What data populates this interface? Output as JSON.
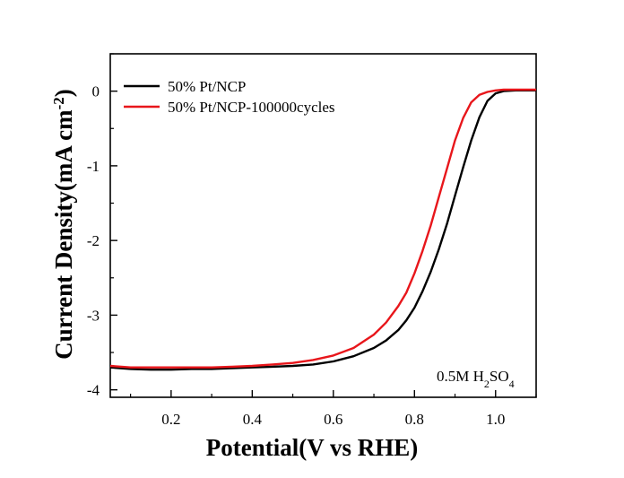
{
  "chart_data": {
    "type": "line",
    "title": "",
    "xlabel": "Potential(V vs RHE)",
    "ylabel_main": "Current Density(mA cm",
    "ylabel_sup": "-2",
    "ylabel_close": ")",
    "xlim": [
      0.05,
      1.1
    ],
    "ylim": [
      -4.1,
      0.5
    ],
    "xticks": [
      0.2,
      0.4,
      0.6,
      0.8,
      1.0
    ],
    "xtick_labels": [
      "0.2",
      "0.4",
      "0.6",
      "0.8",
      "1.0"
    ],
    "yticks": [
      0,
      -1,
      -2,
      -3,
      -4
    ],
    "ytick_labels": [
      "0",
      "-1",
      "-2",
      "-3",
      "-4"
    ],
    "legend_position": "top-left",
    "annotation": {
      "prefix": "0.5M H",
      "sub1": "2",
      "mid": "SO",
      "sub2": "4",
      "position": "bottom-right"
    },
    "series": [
      {
        "name": "50% Pt/NCP",
        "color": "#000000",
        "x": [
          0.05,
          0.1,
          0.15,
          0.2,
          0.25,
          0.3,
          0.35,
          0.4,
          0.45,
          0.5,
          0.55,
          0.6,
          0.65,
          0.7,
          0.73,
          0.76,
          0.78,
          0.8,
          0.82,
          0.84,
          0.86,
          0.88,
          0.9,
          0.92,
          0.94,
          0.96,
          0.98,
          1.0,
          1.02,
          1.05,
          1.1
        ],
        "y": [
          -3.7,
          -3.72,
          -3.73,
          -3.73,
          -3.72,
          -3.72,
          -3.71,
          -3.7,
          -3.69,
          -3.68,
          -3.66,
          -3.62,
          -3.55,
          -3.44,
          -3.34,
          -3.2,
          -3.07,
          -2.9,
          -2.68,
          -2.42,
          -2.12,
          -1.78,
          -1.4,
          -1.02,
          -0.66,
          -0.35,
          -0.13,
          -0.03,
          0.0,
          0.01,
          0.01
        ]
      },
      {
        "name": "50% Pt/NCP-100000cycles",
        "color": "#e8161b",
        "x": [
          0.05,
          0.1,
          0.15,
          0.2,
          0.25,
          0.3,
          0.35,
          0.4,
          0.45,
          0.5,
          0.55,
          0.6,
          0.65,
          0.7,
          0.73,
          0.76,
          0.78,
          0.8,
          0.82,
          0.84,
          0.86,
          0.88,
          0.9,
          0.92,
          0.94,
          0.96,
          0.98,
          1.0,
          1.02,
          1.05,
          1.1
        ],
        "y": [
          -3.68,
          -3.7,
          -3.7,
          -3.7,
          -3.7,
          -3.7,
          -3.69,
          -3.68,
          -3.66,
          -3.64,
          -3.6,
          -3.54,
          -3.44,
          -3.26,
          -3.1,
          -2.88,
          -2.7,
          -2.44,
          -2.14,
          -1.8,
          -1.42,
          -1.04,
          -0.66,
          -0.36,
          -0.15,
          -0.05,
          -0.01,
          0.01,
          0.02,
          0.02,
          0.02
        ]
      }
    ]
  }
}
